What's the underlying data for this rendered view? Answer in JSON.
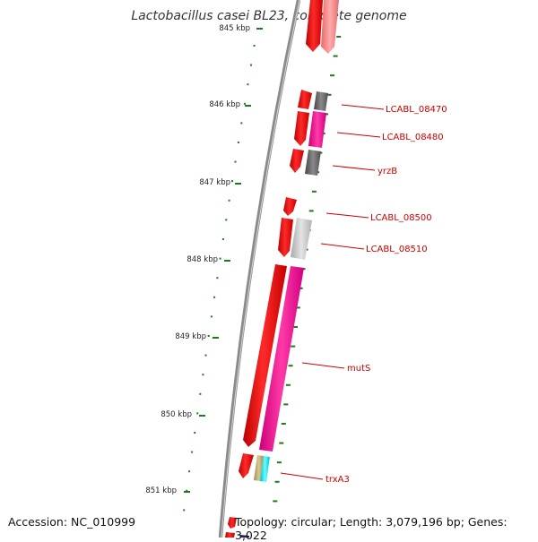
{
  "title": "Lactobacillus casei BL23, complete genome",
  "accession_text": "Accession: NC_010999",
  "summary_text": "Topology: circular; Length: 3,079,196 bp; Genes: 3,022",
  "ticks": [
    {
      "label": "845 kbp",
      "value": 845
    },
    {
      "label": "846 kbp",
      "value": 846
    },
    {
      "label": "847 kbp",
      "value": 847
    },
    {
      "label": "848 kbp",
      "value": 848
    },
    {
      "label": "849 kbp",
      "value": 849
    },
    {
      "label": "850 kbp",
      "value": 850
    },
    {
      "label": "851 kbp",
      "value": 851
    }
  ],
  "genes": [
    {
      "name": "LCABL_08470"
    },
    {
      "name": "LCABL_08480"
    },
    {
      "name": "yrzB"
    },
    {
      "name": "LCABL_08500"
    },
    {
      "name": "LCABL_08510"
    },
    {
      "name": "mutS"
    },
    {
      "name": "trxA3"
    }
  ],
  "colors": {
    "backbone": "#888888",
    "cds": "#ee0000",
    "rna_pink": "#ff2299",
    "tick_green": "#227722",
    "label_red": "#cc0000"
  }
}
